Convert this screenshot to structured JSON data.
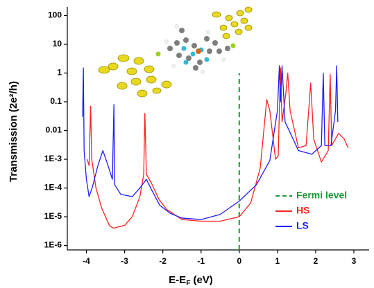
{
  "chart_data": {
    "type": "line",
    "x_label": "E-E",
    "x_label_sub": "F",
    "x_label_tail": " (eV)",
    "y_label": "Transmission (2e²/h)",
    "xlim": [
      -4.5,
      3.4
    ],
    "xticks": [
      -4,
      -3,
      -2,
      -1,
      0,
      1,
      2,
      3
    ],
    "ylim": [
      7e-07,
      200
    ],
    "yscale": "log",
    "yticks": [
      100,
      10,
      1,
      0.1,
      0.01,
      {
        "value": 0.001,
        "label": "1E-3"
      },
      {
        "value": 0.0001,
        "label": "1E-4"
      },
      {
        "value": 1e-05,
        "label": "1E-5"
      },
      {
        "value": 1e-06,
        "label": "1E-6"
      }
    ],
    "legend": "lower right",
    "series": [
      {
        "name": "Fermi level",
        "color": "#1a9a3a",
        "dash": true,
        "x": [
          0,
          0
        ],
        "values": [
          7e-07,
          1
        ]
      },
      {
        "name": "HS",
        "color": "#ff2020",
        "dash": false,
        "x": [
          -3.98,
          -3.93,
          -3.89,
          -3.86,
          -3.75,
          -3.6,
          -3.4,
          -3.3,
          -3.0,
          -2.8,
          -2.6,
          -2.5,
          -2.47,
          -2.43,
          -2.3,
          -2.1,
          -1.9,
          -1.5,
          -1.0,
          -0.5,
          0,
          0.3,
          0.55,
          0.72,
          0.8,
          0.95,
          1.02,
          1.08,
          1.12,
          1.22,
          1.27,
          1.33,
          1.55,
          1.75,
          1.87,
          1.95,
          2.15,
          2.33,
          2.38,
          2.42,
          2.6,
          2.75,
          2.85
        ],
        "values": [
          0.001,
          0.0006,
          0.07,
          0.001,
          0.0001,
          2e-05,
          5e-06,
          4e-06,
          5e-06,
          1e-05,
          5e-05,
          0.0003,
          0.04,
          0.0003,
          0.00015,
          4e-05,
          1.8e-05,
          8e-06,
          7e-06,
          7e-06,
          1e-05,
          3e-05,
          0.0005,
          0.12,
          0.05,
          0.001,
          0.0013,
          1.5,
          0.02,
          0.2,
          1,
          0.05,
          0.0025,
          0.003,
          0.45,
          0.005,
          0.0008,
          0.002,
          0.9,
          0.003,
          0.008,
          0.005,
          0.0025
        ]
      },
      {
        "name": "LS",
        "color": "#1c1cff",
        "dash": false,
        "x": [
          -4.1,
          -4.08,
          -4.06,
          -4.0,
          -3.93,
          -3.85,
          -3.7,
          -3.57,
          -3.45,
          -3.32,
          -3.28,
          -3.26,
          -3.1,
          -2.8,
          -2.6,
          -2.43,
          -2.3,
          -2.08,
          -1.8,
          -1.5,
          -1.0,
          -0.5,
          0,
          0.45,
          0.8,
          1.0,
          1.05,
          1.08,
          1.12,
          1.2,
          1.55,
          1.9,
          2.15,
          2.2,
          2.24,
          2.4,
          2.52,
          2.55,
          2.58
        ],
        "values": [
          0.03,
          1.5,
          0.002,
          0.0002,
          5e-05,
          0.0001,
          0.0006,
          0.002,
          0.0007,
          0.0002,
          0.08,
          0.00013,
          6e-05,
          5e-05,
          0.0001,
          0.0002,
          9e-05,
          2.5e-05,
          1.3e-05,
          9e-06,
          8e-06,
          1.2e-05,
          3.5e-05,
          0.00013,
          0.0009,
          0.05,
          1.8,
          0.1,
          1.8,
          0.02,
          0.002,
          0.0015,
          0.003,
          1,
          0.003,
          0.003,
          0.05,
          1.8,
          0.02
        ]
      }
    ]
  }
}
